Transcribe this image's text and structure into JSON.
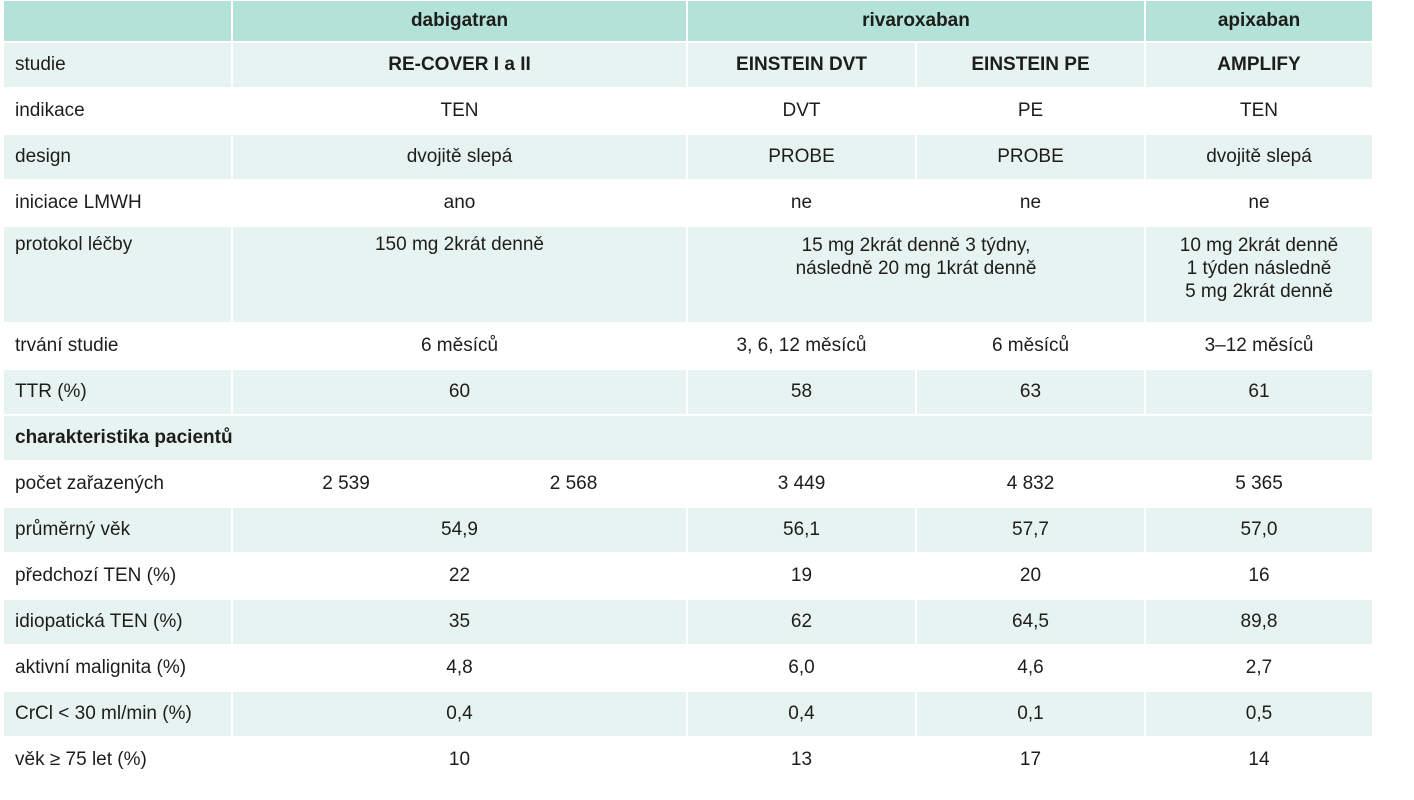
{
  "header": [
    "",
    "dabigatran",
    "rivaroxaban",
    "apixaban"
  ],
  "rows": [
    {
      "label": "studie",
      "values": [
        "RE-COVER I a II",
        "EINSTEIN DVT",
        "EINSTEIN PE",
        "AMPLIFY"
      ]
    },
    {
      "label": "indikace",
      "values": [
        "TEN",
        "DVT",
        "PE",
        "TEN"
      ]
    },
    {
      "label": "design",
      "values": [
        "dvojitě slepá",
        "PROBE",
        "PROBE",
        "dvojitě slepá"
      ]
    },
    {
      "label": "iniciace LMWH",
      "values": [
        "ano",
        "ne",
        "ne",
        "ne"
      ]
    },
    {
      "label": "protokol léčby",
      "dabigatran": "150 mg 2krát denně",
      "rivaroxaban_lines": [
        "15 mg 2krát denně 3 týdny,",
        "následně 20 mg 1krát denně"
      ],
      "apixaban_lines": [
        "10 mg 2krát denně",
        "1 týden následně",
        "5 mg 2krát denně"
      ]
    },
    {
      "label": "trvání studie",
      "values": [
        "6 měsíců",
        "3, 6, 12 měsíců",
        "6 měsíců",
        "3–12 měsíců"
      ]
    },
    {
      "label": "TTR (%)",
      "values": [
        "60",
        "58",
        "63",
        "61"
      ]
    }
  ],
  "section_label": "charakteristika pacientů",
  "patient_rows": [
    {
      "label": "počet zařazených",
      "values": [
        "2 539",
        "2 568",
        "3 449",
        "4 832",
        "5 365"
      ]
    },
    {
      "label": "průměrný věk",
      "values": [
        "54,9",
        "56,1",
        "57,7",
        "57,0"
      ]
    },
    {
      "label": "předchozí TEN (%)",
      "values": [
        "22",
        "19",
        "20",
        "16"
      ]
    },
    {
      "label": "idiopatická TEN (%)",
      "values": [
        "35",
        "62",
        "64,5",
        "89,8"
      ]
    },
    {
      "label": "aktivní malignita (%)",
      "values": [
        "4,8",
        "6,0",
        "4,6",
        "2,7"
      ]
    },
    {
      "label": "CrCl < 30 ml/min (%)",
      "values": [
        "0,4",
        "0,4",
        "0,1",
        "0,5"
      ]
    },
    {
      "label": "věk ≥ 75 let (%)",
      "values": [
        "10",
        "13",
        "17",
        "14"
      ]
    }
  ]
}
